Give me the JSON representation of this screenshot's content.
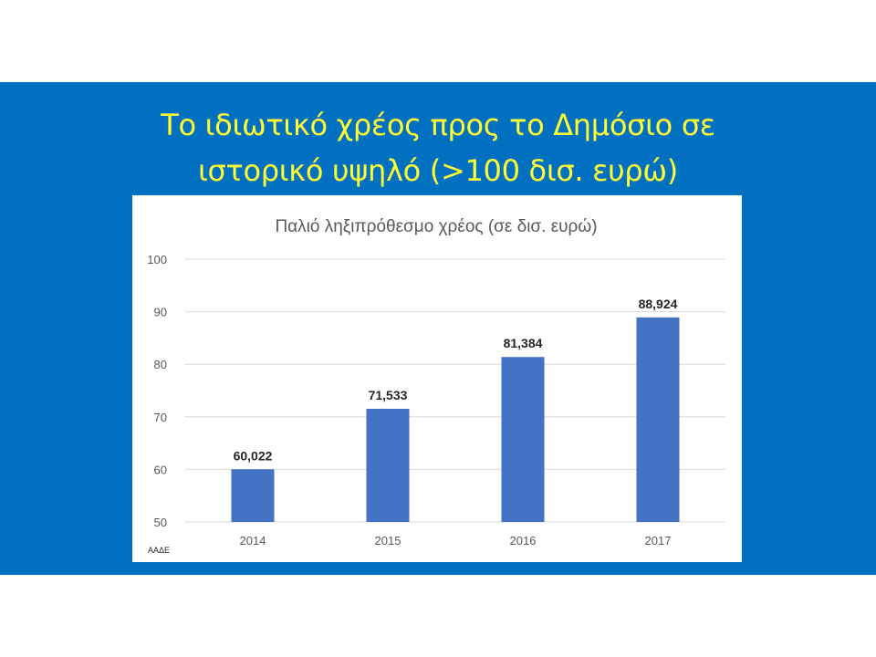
{
  "slide": {
    "title_line1": "Το ιδιωτικό χρέος προς το Δημόσιο σε",
    "title_line2": "ιστορικό υψηλό (>100 δισ. ευρώ)",
    "source": "ΑΑΔΕ",
    "colors": {
      "band": "#0270c0",
      "title": "#ffff33",
      "bar": "#4472c4"
    }
  },
  "chart_data": {
    "type": "bar",
    "title": "Παλιό ληξιπρόθεσμο χρέος (σε δισ. ευρώ)",
    "categories": [
      "2014",
      "2015",
      "2016",
      "2017"
    ],
    "values": [
      60.022,
      71.533,
      81.384,
      88.924
    ],
    "data_labels": [
      "60,022",
      "71,533",
      "81,384",
      "88,924"
    ],
    "ylim": [
      50,
      100
    ],
    "yticks": [
      "50",
      "60",
      "70",
      "80",
      "90",
      "100"
    ],
    "grid": true,
    "legend": "none"
  }
}
